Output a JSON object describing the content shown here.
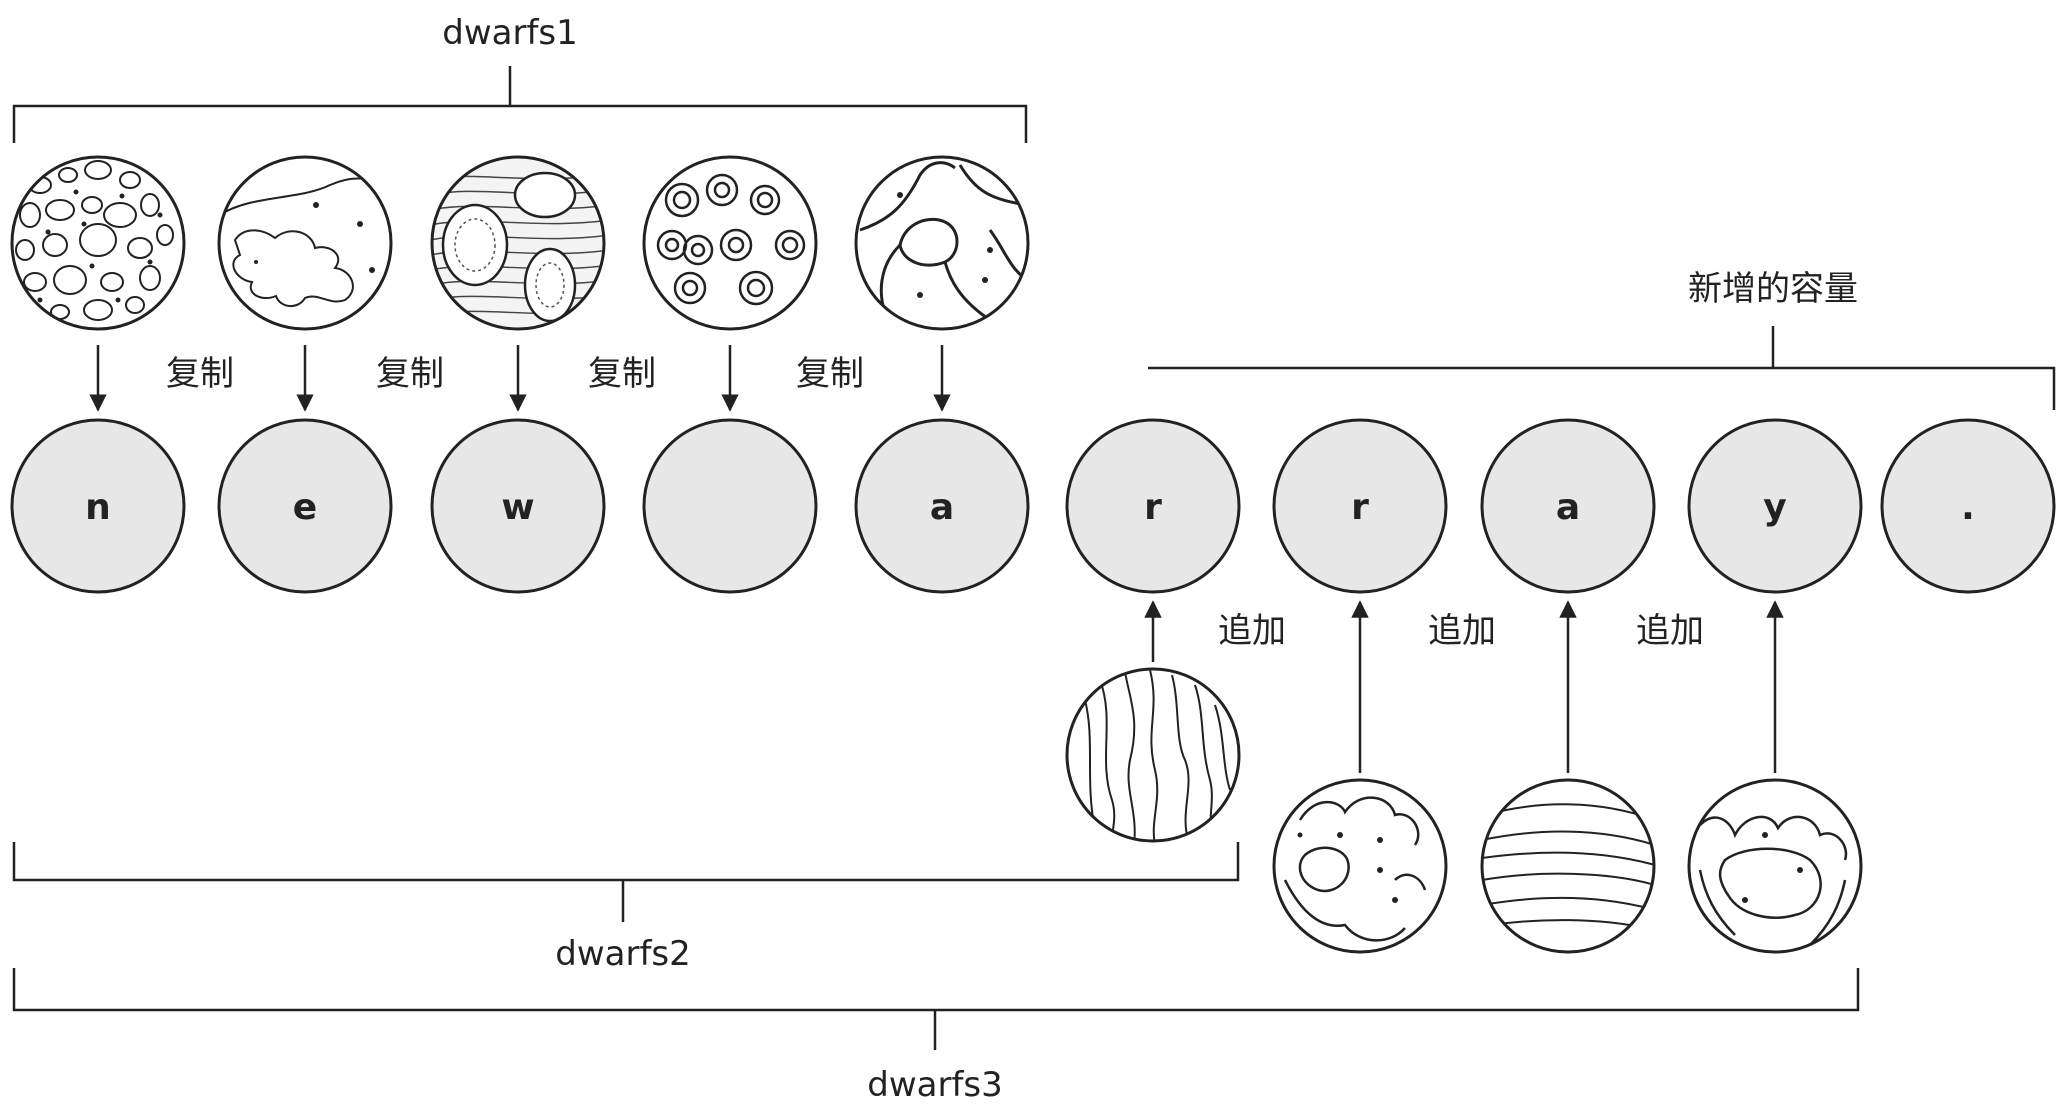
{
  "brackets": {
    "dwarfs1": "dwarfs1",
    "dwarfs2": "dwarfs2",
    "dwarfs3": "dwarfs3",
    "new_capacity": "新增的容量"
  },
  "slots": [
    "n",
    "e",
    "w",
    "",
    "a",
    "r",
    "r",
    "a",
    "y",
    "."
  ],
  "ops": {
    "copy": [
      "复制",
      "复制",
      "复制",
      "复制"
    ],
    "append": [
      "追加",
      "追加",
      "追加"
    ]
  },
  "colors": {
    "slot_fill": "#e7e7e7",
    "stroke": "#222222"
  },
  "icons": {
    "copied_planets": [
      "rock-planet-icon",
      "cloud-planet-icon",
      "storm-planet-icon",
      "crater-planet-icon",
      "vein-planet-icon"
    ],
    "appended_planets": [
      "streak-planet-icon",
      "island-planet-icon",
      "banded-planet-icon",
      "lake-planet-icon"
    ]
  }
}
